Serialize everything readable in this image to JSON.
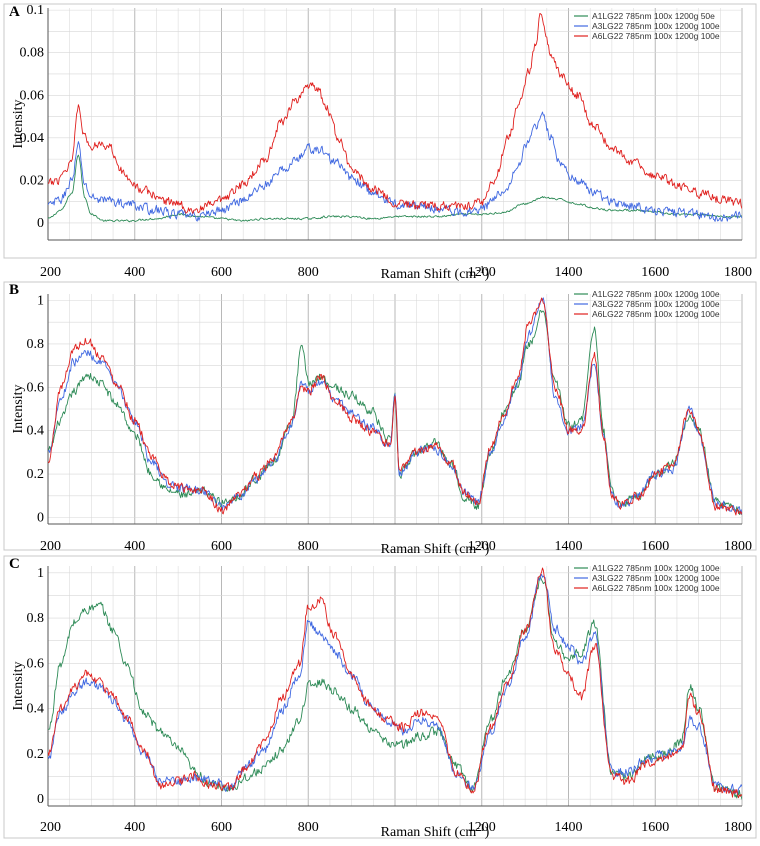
{
  "figure": {
    "panels": [
      "A",
      "B",
      "C"
    ],
    "xlabel_main": "Raman Shift (cm",
    "xlabel_sup": "-1",
    "xlabel_close": ")",
    "ylabel": "Intensity"
  },
  "chart_data": [
    {
      "panel": "A",
      "type": "line",
      "title": "",
      "xlabel": "Raman Shift (cm-1)",
      "ylabel": "Intensity",
      "xlim": [
        200,
        1800
      ],
      "ylim": [
        -0.008,
        0.101
      ],
      "xticks": [
        200,
        400,
        600,
        800,
        1000,
        1200,
        1400,
        1600,
        1800
      ],
      "xtick_labels": [
        "200",
        "400",
        "600",
        "800",
        "",
        "1200",
        "1400",
        "1600",
        "1800"
      ],
      "yticks": [
        0,
        0.02,
        0.04,
        0.06,
        0.08,
        0.1
      ],
      "ytick_labels": [
        "0",
        "0.02",
        "0.04",
        "0.06",
        "0.08",
        "0.1"
      ],
      "legend_position": "top-right",
      "series": [
        {
          "name": "A1LG22 785nm 100x 1200g 50e",
          "color": "#2e8b57",
          "x": [
            200,
            230,
            255,
            270,
            285,
            300,
            330,
            380,
            450,
            500,
            550,
            600,
            650,
            700,
            750,
            800,
            850,
            900,
            950,
            1000,
            1050,
            1100,
            1150,
            1200,
            1250,
            1300,
            1340,
            1380,
            1420,
            1460,
            1500,
            1550,
            1600,
            1650,
            1700,
            1750,
            1800
          ],
          "y": [
            0.002,
            0.006,
            0.014,
            0.032,
            0.012,
            0.004,
            0.001,
            0.001,
            0.002,
            0.004,
            0.003,
            0.002,
            0.001,
            0.002,
            0.002,
            0.002,
            0.003,
            0.003,
            0.002,
            0.003,
            0.003,
            0.003,
            0.004,
            0.004,
            0.005,
            0.009,
            0.012,
            0.011,
            0.009,
            0.007,
            0.006,
            0.006,
            0.005,
            0.004,
            0.004,
            0.003,
            0.003
          ]
        },
        {
          "name": "A3LG22 785nm 100x 1200g 100e",
          "color": "#4169e1",
          "x": [
            200,
            230,
            255,
            270,
            285,
            300,
            330,
            380,
            450,
            500,
            540,
            600,
            650,
            700,
            750,
            780,
            800,
            830,
            860,
            900,
            950,
            1000,
            1050,
            1100,
            1150,
            1200,
            1250,
            1280,
            1300,
            1320,
            1340,
            1360,
            1380,
            1420,
            1460,
            1500,
            1550,
            1600,
            1650,
            1700,
            1750,
            1800
          ],
          "y": [
            0.008,
            0.011,
            0.02,
            0.036,
            0.018,
            0.012,
            0.011,
            0.009,
            0.006,
            0.004,
            0.003,
            0.006,
            0.011,
            0.018,
            0.026,
            0.031,
            0.035,
            0.034,
            0.029,
            0.021,
            0.014,
            0.009,
            0.008,
            0.007,
            0.005,
            0.007,
            0.015,
            0.025,
            0.035,
            0.044,
            0.05,
            0.04,
            0.028,
            0.02,
            0.014,
            0.01,
            0.008,
            0.006,
            0.005,
            0.004,
            0.003,
            0.003
          ]
        },
        {
          "name": "A6LG22 785nm 100x 1200g 100e",
          "color": "#e0201e",
          "x": [
            200,
            220,
            240,
            255,
            270,
            285,
            300,
            320,
            340,
            380,
            420,
            480,
            540,
            600,
            650,
            700,
            740,
            770,
            800,
            820,
            840,
            870,
            900,
            950,
            1000,
            1050,
            1100,
            1150,
            1200,
            1230,
            1260,
            1290,
            1310,
            1325,
            1335,
            1345,
            1360,
            1380,
            1420,
            1460,
            1500,
            1550,
            1600,
            1650,
            1700,
            1750,
            1800
          ],
          "y": [
            0.018,
            0.02,
            0.025,
            0.03,
            0.056,
            0.04,
            0.035,
            0.038,
            0.036,
            0.022,
            0.015,
            0.01,
            0.006,
            0.01,
            0.018,
            0.03,
            0.048,
            0.058,
            0.063,
            0.064,
            0.055,
            0.04,
            0.025,
            0.016,
            0.01,
            0.008,
            0.008,
            0.008,
            0.01,
            0.02,
            0.04,
            0.058,
            0.072,
            0.085,
            0.097,
            0.09,
            0.08,
            0.07,
            0.06,
            0.045,
            0.035,
            0.028,
            0.022,
            0.018,
            0.014,
            0.011,
            0.009
          ]
        }
      ]
    },
    {
      "panel": "B",
      "type": "line",
      "title": "",
      "xlabel": "Raman Shift (cm-1)",
      "ylabel": "Intensity",
      "xlim": [
        200,
        1800
      ],
      "ylim": [
        -0.03,
        1.03
      ],
      "xticks": [
        200,
        400,
        600,
        800,
        1000,
        1200,
        1400,
        1600,
        1800
      ],
      "xtick_labels": [
        "200",
        "400",
        "600",
        "800",
        "",
        "1200",
        "1400",
        "1600",
        "1800"
      ],
      "yticks": [
        0,
        0.2,
        0.4,
        0.6,
        0.8,
        1
      ],
      "ytick_labels": [
        "0",
        "0.2",
        "0.4",
        "0.6",
        "0.8",
        "1"
      ],
      "legend_position": "top-right",
      "series": [
        {
          "name": "A1LG22 785nm 100x 1200g 100e",
          "color": "#2e8b57",
          "x": [
            200,
            230,
            260,
            290,
            320,
            360,
            400,
            440,
            480,
            520,
            560,
            600,
            640,
            680,
            720,
            760,
            785,
            800,
            830,
            860,
            900,
            940,
            990,
            1000,
            1010,
            1050,
            1090,
            1130,
            1160,
            1190,
            1220,
            1250,
            1280,
            1310,
            1340,
            1370,
            1400,
            1430,
            1460,
            1480,
            1500,
            1520,
            1560,
            1600,
            1640,
            1680,
            1700,
            1740,
            1800
          ],
          "y": [
            0.3,
            0.45,
            0.58,
            0.66,
            0.62,
            0.52,
            0.38,
            0.2,
            0.12,
            0.1,
            0.12,
            0.07,
            0.1,
            0.18,
            0.26,
            0.42,
            0.78,
            0.62,
            0.65,
            0.6,
            0.56,
            0.5,
            0.35,
            0.55,
            0.2,
            0.3,
            0.35,
            0.25,
            0.1,
            0.05,
            0.3,
            0.48,
            0.6,
            0.8,
            0.95,
            0.62,
            0.42,
            0.45,
            0.88,
            0.4,
            0.12,
            0.06,
            0.1,
            0.2,
            0.25,
            0.48,
            0.4,
            0.07,
            0.03
          ]
        },
        {
          "name": "A3LG22 785nm 100x 1200g 100e",
          "color": "#4169e1",
          "x": [
            200,
            230,
            260,
            290,
            320,
            360,
            400,
            440,
            480,
            520,
            560,
            600,
            640,
            680,
            720,
            760,
            785,
            800,
            830,
            860,
            900,
            940,
            990,
            1000,
            1010,
            1050,
            1090,
            1130,
            1160,
            1190,
            1220,
            1250,
            1280,
            1310,
            1340,
            1370,
            1400,
            1430,
            1460,
            1480,
            1500,
            1520,
            1560,
            1600,
            1640,
            1680,
            1700,
            1740,
            1800
          ],
          "y": [
            0.3,
            0.55,
            0.72,
            0.76,
            0.72,
            0.6,
            0.44,
            0.25,
            0.15,
            0.13,
            0.12,
            0.05,
            0.1,
            0.18,
            0.26,
            0.42,
            0.62,
            0.58,
            0.62,
            0.55,
            0.48,
            0.42,
            0.34,
            0.58,
            0.2,
            0.3,
            0.32,
            0.24,
            0.12,
            0.07,
            0.3,
            0.45,
            0.6,
            0.85,
            1.0,
            0.55,
            0.4,
            0.42,
            0.72,
            0.38,
            0.1,
            0.05,
            0.1,
            0.2,
            0.22,
            0.5,
            0.38,
            0.06,
            0.03
          ]
        },
        {
          "name": "A6LG22 785nm 100x 1200g 100e",
          "color": "#e0201e",
          "x": [
            200,
            230,
            260,
            290,
            320,
            360,
            400,
            440,
            480,
            520,
            560,
            600,
            640,
            680,
            720,
            760,
            785,
            800,
            830,
            860,
            900,
            940,
            990,
            1000,
            1010,
            1050,
            1090,
            1130,
            1160,
            1190,
            1220,
            1250,
            1280,
            1310,
            1340,
            1370,
            1400,
            1430,
            1460,
            1480,
            1500,
            1520,
            1560,
            1600,
            1640,
            1680,
            1700,
            1740,
            1800
          ],
          "y": [
            0.25,
            0.6,
            0.78,
            0.82,
            0.75,
            0.62,
            0.45,
            0.27,
            0.16,
            0.13,
            0.13,
            0.03,
            0.1,
            0.19,
            0.27,
            0.44,
            0.6,
            0.58,
            0.64,
            0.55,
            0.46,
            0.4,
            0.33,
            0.55,
            0.22,
            0.3,
            0.33,
            0.25,
            0.12,
            0.06,
            0.32,
            0.47,
            0.63,
            0.9,
            1.0,
            0.6,
            0.4,
            0.4,
            0.75,
            0.38,
            0.11,
            0.06,
            0.1,
            0.2,
            0.24,
            0.5,
            0.39,
            0.05,
            0.02
          ]
        }
      ]
    },
    {
      "panel": "C",
      "type": "line",
      "title": "",
      "xlabel": "Raman Shift (cm-1)",
      "ylabel": "Intensity",
      "xlim": [
        200,
        1800
      ],
      "ylim": [
        -0.03,
        1.03
      ],
      "xticks": [
        200,
        400,
        600,
        800,
        1000,
        1200,
        1400,
        1600,
        1800
      ],
      "xtick_labels": [
        "200",
        "400",
        "600",
        "800",
        "",
        "1200",
        "1400",
        "1600",
        "1800"
      ],
      "yticks": [
        0,
        0.2,
        0.4,
        0.6,
        0.8,
        1
      ],
      "ytick_labels": [
        "0",
        "0.2",
        "0.4",
        "0.6",
        "0.8",
        "1"
      ],
      "legend_position": "top-right",
      "series": [
        {
          "name": "A1LG22 785nm 100x 1200g 100e",
          "color": "#2e8b57",
          "x": [
            200,
            230,
            260,
            290,
            320,
            350,
            380,
            420,
            460,
            500,
            540,
            580,
            620,
            660,
            700,
            740,
            780,
            800,
            830,
            860,
            900,
            940,
            980,
            1020,
            1060,
            1100,
            1140,
            1180,
            1220,
            1260,
            1300,
            1340,
            1370,
            1400,
            1430,
            1460,
            1500,
            1540,
            1580,
            1620,
            1660,
            1680,
            1700,
            1740,
            1800
          ],
          "y": [
            0.3,
            0.6,
            0.78,
            0.84,
            0.85,
            0.75,
            0.6,
            0.38,
            0.3,
            0.22,
            0.12,
            0.06,
            0.05,
            0.1,
            0.14,
            0.22,
            0.35,
            0.5,
            0.52,
            0.48,
            0.4,
            0.32,
            0.25,
            0.24,
            0.28,
            0.3,
            0.15,
            0.05,
            0.35,
            0.55,
            0.75,
            0.98,
            0.68,
            0.62,
            0.65,
            0.78,
            0.12,
            0.1,
            0.18,
            0.2,
            0.25,
            0.5,
            0.4,
            0.05,
            0.02
          ]
        },
        {
          "name": "A3LG22 785nm 100x 1200g 100e",
          "color": "#4169e1",
          "x": [
            200,
            230,
            260,
            290,
            320,
            350,
            380,
            420,
            460,
            500,
            540,
            580,
            620,
            660,
            700,
            740,
            780,
            800,
            830,
            860,
            900,
            940,
            980,
            1020,
            1060,
            1100,
            1140,
            1180,
            1220,
            1260,
            1300,
            1340,
            1370,
            1400,
            1430,
            1460,
            1500,
            1540,
            1580,
            1620,
            1660,
            1680,
            1700,
            1740,
            1800
          ],
          "y": [
            0.18,
            0.38,
            0.48,
            0.52,
            0.5,
            0.43,
            0.35,
            0.2,
            0.08,
            0.08,
            0.1,
            0.08,
            0.05,
            0.15,
            0.22,
            0.4,
            0.55,
            0.78,
            0.72,
            0.65,
            0.55,
            0.42,
            0.35,
            0.3,
            0.35,
            0.32,
            0.12,
            0.05,
            0.3,
            0.5,
            0.72,
            1.0,
            0.75,
            0.68,
            0.6,
            0.72,
            0.12,
            0.12,
            0.18,
            0.2,
            0.22,
            0.35,
            0.32,
            0.06,
            0.04
          ]
        },
        {
          "name": "A6LG22 785nm 100x 1200g 100e",
          "color": "#e0201e",
          "x": [
            200,
            230,
            260,
            290,
            320,
            350,
            380,
            420,
            460,
            500,
            540,
            580,
            620,
            660,
            700,
            740,
            780,
            800,
            830,
            860,
            900,
            940,
            980,
            1020,
            1060,
            1100,
            1140,
            1180,
            1220,
            1260,
            1300,
            1340,
            1370,
            1400,
            1430,
            1460,
            1500,
            1540,
            1580,
            1620,
            1660,
            1680,
            1700,
            1740,
            1800
          ],
          "y": [
            0.2,
            0.4,
            0.5,
            0.56,
            0.52,
            0.45,
            0.36,
            0.22,
            0.06,
            0.08,
            0.1,
            0.06,
            0.05,
            0.15,
            0.25,
            0.45,
            0.6,
            0.85,
            0.88,
            0.72,
            0.55,
            0.42,
            0.35,
            0.32,
            0.38,
            0.35,
            0.12,
            0.04,
            0.32,
            0.52,
            0.75,
            1.0,
            0.65,
            0.55,
            0.45,
            0.68,
            0.1,
            0.08,
            0.16,
            0.18,
            0.22,
            0.45,
            0.38,
            0.04,
            0.02
          ]
        }
      ]
    }
  ]
}
